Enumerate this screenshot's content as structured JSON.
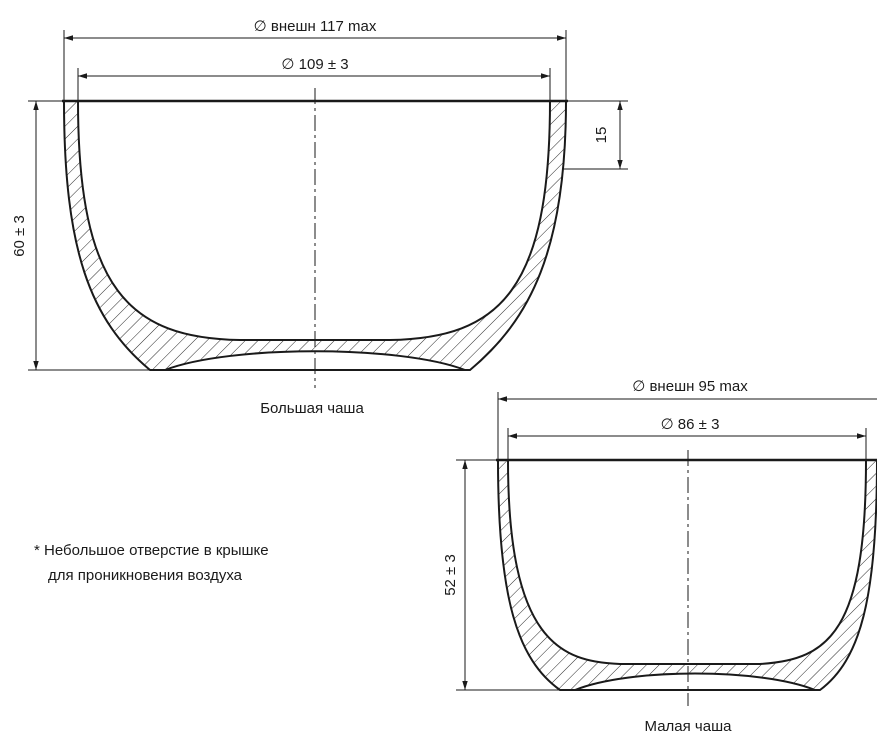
{
  "large_bowl": {
    "caption": "Большая чаша",
    "outer_diameter_label": "∅ внешн 117 max",
    "inner_diameter_label": "∅ 109 ± 3",
    "height_label": "60 ± 3",
    "rim_depth_label": "15"
  },
  "small_bowl": {
    "caption": "Малая чаша",
    "outer_diameter_label": "∅ внешн 95 max",
    "inner_diameter_label": "∅ 86 ± 3",
    "height_label": "52 ± 3"
  },
  "note": {
    "line1": "* Небольшое отверстие в крышке",
    "line2": "для проникновения воздуха"
  },
  "colors": {
    "line": "#1a1a1a",
    "hatch": "#2a2a2a",
    "background": "#ffffff"
  }
}
